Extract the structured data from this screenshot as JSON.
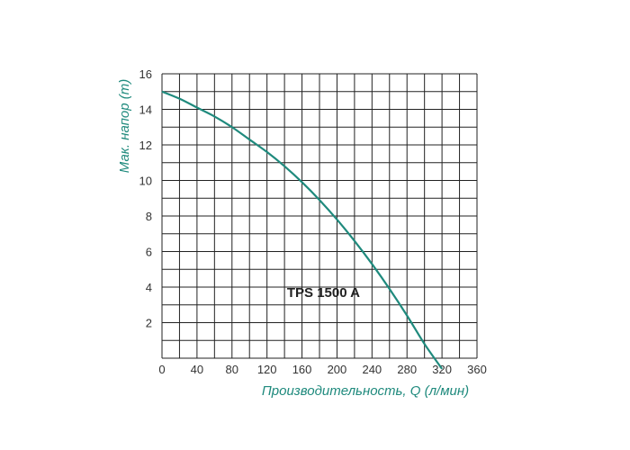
{
  "chart_data": {
    "type": "line",
    "title": "",
    "xlabel": "Производительность, Q (л/мин)",
    "ylabel": "Мак. напор (m)",
    "xlim": [
      0,
      360
    ],
    "ylim": [
      0,
      16
    ],
    "x_ticks": [
      "0",
      "40",
      "80",
      "120",
      "160",
      "200",
      "240",
      "280",
      "320",
      "360"
    ],
    "y_ticks": [
      "2",
      "4",
      "6",
      "8",
      "10",
      "12",
      "14",
      "16"
    ],
    "grid": true,
    "grid_minor_x_step": 20,
    "grid_minor_y_step": 1,
    "series": [
      {
        "name": "TPS 1500 A",
        "color": "#1f8a7d",
        "x": [
          0,
          20,
          40,
          60,
          80,
          100,
          120,
          140,
          160,
          180,
          200,
          220,
          240,
          260,
          280,
          300,
          320
        ],
        "y": [
          15.0,
          14.6,
          14.1,
          13.6,
          13.0,
          12.3,
          11.6,
          10.8,
          9.9,
          8.9,
          7.8,
          6.6,
          5.3,
          3.9,
          2.4,
          0.8,
          -0.6
        ]
      }
    ],
    "annotations": [
      {
        "text": "TPS 1500 A",
        "x": 200,
        "y": 3.5
      }
    ],
    "colors": {
      "grid": "#222222",
      "axis_title": "#1f8a7d",
      "tick_label": "#333333"
    }
  }
}
